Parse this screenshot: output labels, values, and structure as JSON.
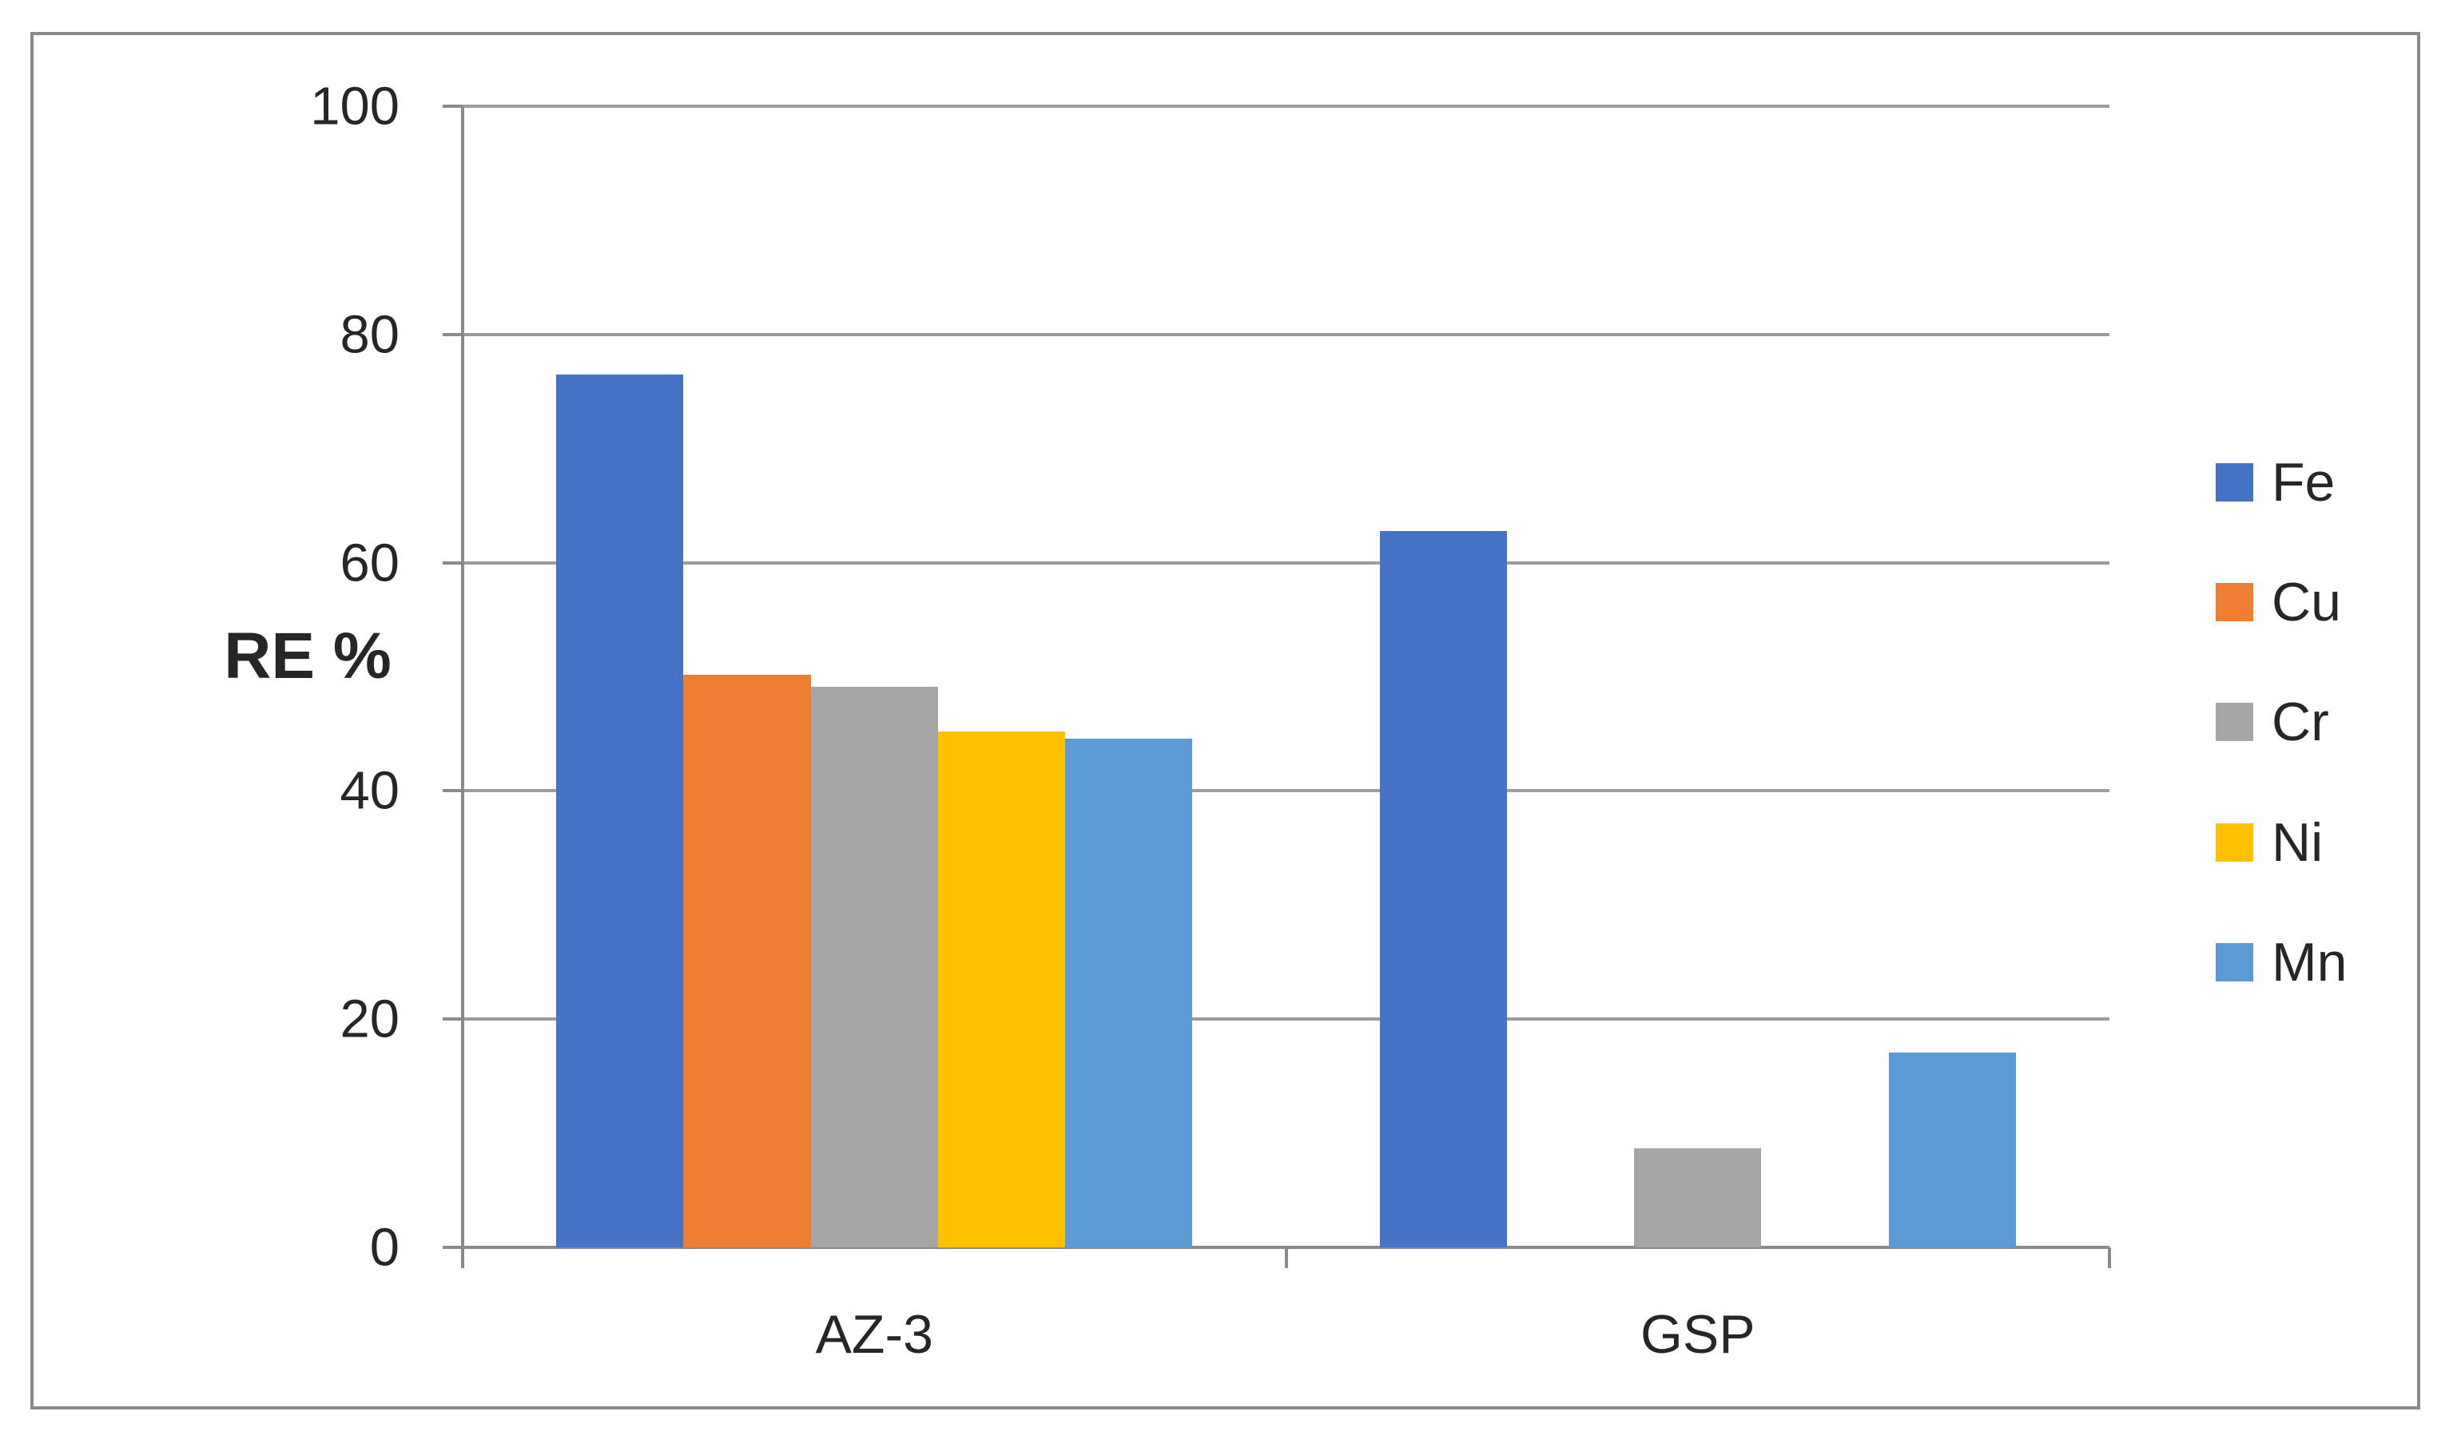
{
  "chart_data": {
    "type": "bar",
    "title": "",
    "ylabel": "RE %",
    "xlabel": "",
    "categories": [
      "AZ-3",
      "GSP"
    ],
    "series": [
      {
        "name": "Fe",
        "color": "#4472C4",
        "values": [
          76.5,
          62.8
        ]
      },
      {
        "name": "Cu",
        "color": "#ED7D31",
        "values": [
          50.2,
          0
        ]
      },
      {
        "name": "Cr",
        "color": "#A5A5A5",
        "values": [
          49.1,
          8.7
        ]
      },
      {
        "name": "Ni",
        "color": "#FFC000",
        "values": [
          45.2,
          0
        ]
      },
      {
        "name": "Mn",
        "color": "#5B9BD5",
        "values": [
          44.6,
          17.1
        ]
      }
    ],
    "ylim": [
      0,
      100
    ],
    "yticks": [
      0,
      20,
      40,
      60,
      80,
      100
    ],
    "grid": true,
    "legend_position": "right",
    "legend_entries": [
      "Fe",
      "Cu",
      "Cr",
      "Ni",
      "Mn"
    ]
  },
  "styles": {
    "gridline_color": "#9c9c9c",
    "axis_color": "#8a8a8a",
    "border_color": "#8a8a8a",
    "text_color": "#262626",
    "background": "#ffffff"
  }
}
